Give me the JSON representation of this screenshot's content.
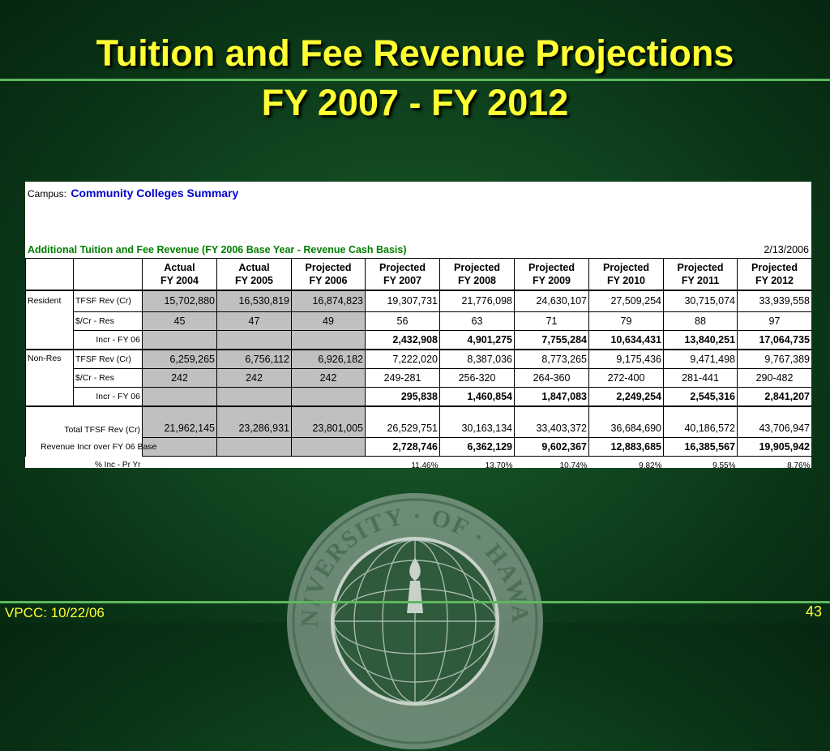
{
  "slide": {
    "title_line1": "Tuition and Fee Revenue Projections",
    "title_line2": "FY 2007 - FY 2012",
    "footer_left": "VPCC: 10/22/06",
    "page_number": "43",
    "seal_text": "UNIVERSITY · OF · HAWAII"
  },
  "sheet": {
    "campus_label": "Campus:",
    "campus_value": "Community Colleges Summary",
    "subtitle": "Additional Tuition and Fee Revenue (FY 2006 Base Year - Revenue Cash Basis)",
    "date": "2/13/2006",
    "headers": [
      [
        "Actual",
        "FY 2004"
      ],
      [
        "Actual",
        "FY 2005"
      ],
      [
        "Projected",
        "FY 2006"
      ],
      [
        "Projected",
        "FY 2007"
      ],
      [
        "Projected",
        "FY 2008"
      ],
      [
        "Projected",
        "FY 2009"
      ],
      [
        "Projected",
        "FY 2010"
      ],
      [
        "Projected",
        "FY 2011"
      ],
      [
        "Projected",
        "FY 2012"
      ]
    ],
    "resident": {
      "label": "Resident",
      "tfsf_label": "TFSF Rev (Cr)",
      "tfsf": [
        "15,702,880",
        "16,530,819",
        "16,874,823",
        "19,307,731",
        "21,776,098",
        "24,630,107",
        "27,509,254",
        "30,715,074",
        "33,939,558"
      ],
      "percr_label": "$/Cr - Res",
      "percr": [
        "45",
        "47",
        "49",
        "56",
        "63",
        "71",
        "79",
        "88",
        "97"
      ],
      "incr_label": "Incr - FY 06",
      "incr": [
        "",
        "",
        "",
        "2,432,908",
        "4,901,275",
        "7,755,284",
        "10,634,431",
        "13,840,251",
        "17,064,735"
      ]
    },
    "nonres": {
      "label": "Non-Res",
      "tfsf_label": "TFSF Rev (Cr)",
      "tfsf": [
        "6,259,265",
        "6,756,112",
        "6,926,182",
        "7,222,020",
        "8,387,036",
        "8,773,265",
        "9,175,436",
        "9,471,498",
        "9,767,389"
      ],
      "percr_label": "$/Cr - Res",
      "percr": [
        "242",
        "242",
        "242",
        "249-281",
        "256-320",
        "264-360",
        "272-400",
        "281-441",
        "290-482"
      ],
      "incr_label": "Incr - FY 06",
      "incr": [
        "",
        "",
        "",
        "295,838",
        "1,460,854",
        "1,847,083",
        "2,249,254",
        "2,545,316",
        "2,841,207"
      ]
    },
    "total": {
      "label": "Total TFSF Rev (Cr)",
      "values": [
        "21,962,145",
        "23,286,931",
        "23,801,005",
        "26,529,751",
        "30,163,134",
        "33,403,372",
        "36,684,690",
        "40,186,572",
        "43,706,947"
      ]
    },
    "revincr": {
      "label": "Revenue Incr over FY 06 Base",
      "values": [
        "",
        "",
        "",
        "2,728,746",
        "6,362,129",
        "9,602,367",
        "12,883,685",
        "16,385,567",
        "19,905,942"
      ]
    },
    "pctinc": {
      "label": "% Inc - Pr Yr",
      "values": [
        "",
        "",
        "",
        "11.46%",
        "13.70%",
        "10.74%",
        "9.82%",
        "9.55%",
        "8.76%"
      ]
    }
  }
}
